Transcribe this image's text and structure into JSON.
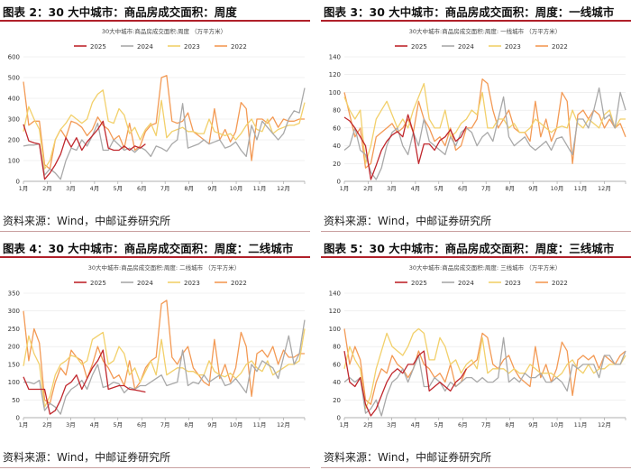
{
  "chart_data": [
    {
      "type": "line",
      "title": "图表 2：30 大中城市：商品房成交面积：周度",
      "subtitle": "30大中城市:商品房成交面积:周度 （万平方米）",
      "xlabel": "",
      "ylabel": "",
      "months": [
        "1月",
        "2月",
        "3月",
        "4月",
        "5月",
        "6月",
        "7月",
        "8月",
        "9月",
        "10月",
        "11月",
        "12月"
      ],
      "ylim": [
        0,
        600
      ],
      "yticks": [
        0,
        100,
        200,
        300,
        400,
        500,
        600
      ],
      "source": "资料来源：Wind，中邮证券研究所",
      "series": [
        {
          "name": "2025",
          "color": "#c0272d",
          "values": [
            275,
            195,
            185,
            180,
            10,
            40,
            80,
            130,
            210,
            165,
            210,
            150,
            190,
            220,
            250,
            290,
            160,
            150,
            150,
            170,
            150,
            170,
            160,
            180
          ]
        },
        {
          "name": "2024",
          "color": "#a9a9a9",
          "values": [
            170,
            175,
            175,
            180,
            30,
            60,
            40,
            10,
            100,
            160,
            150,
            200,
            170,
            220,
            280,
            150,
            150,
            200,
            175,
            150,
            160,
            140,
            165,
            150,
            120,
            170,
            160,
            145,
            180,
            200,
            375,
            160,
            170,
            180,
            200,
            180,
            190,
            200,
            160,
            170,
            190,
            150,
            120,
            270,
            200,
            290,
            260,
            230,
            200,
            230,
            300,
            340,
            330,
            450
          ]
        },
        {
          "name": "2023",
          "color": "#f2d06b",
          "values": [
            240,
            360,
            300,
            250,
            60,
            100,
            200,
            250,
            280,
            320,
            300,
            280,
            300,
            380,
            420,
            440,
            290,
            280,
            350,
            320,
            230,
            260,
            200,
            250,
            280,
            220,
            390,
            210,
            240,
            250,
            260,
            240,
            240,
            230,
            230,
            300,
            240,
            230,
            220,
            230,
            200,
            230,
            270,
            300,
            250,
            240,
            300,
            230,
            250,
            260,
            270,
            270,
            280,
            380
          ]
        },
        {
          "name": "2022",
          "color": "#f39a55",
          "values": [
            480,
            270,
            290,
            290,
            80,
            60,
            200,
            250,
            210,
            290,
            280,
            260,
            220,
            250,
            310,
            270,
            250,
            200,
            220,
            160,
            280,
            150,
            170,
            240,
            270,
            280,
            500,
            510,
            290,
            280,
            290,
            330,
            240,
            220,
            200,
            180,
            350,
            200,
            250,
            190,
            240,
            380,
            350,
            100,
            300,
            300,
            280,
            310,
            260,
            300,
            290,
            290,
            300,
            300
          ]
        }
      ]
    },
    {
      "type": "line",
      "title": "图表 3：30 大中城市：商品房成交面积：周度：一线城市",
      "subtitle": "30大中城市:商品房成交面积:周度: 一线城市 （万平方米）",
      "xlabel": "",
      "ylabel": "",
      "months": [
        "1月",
        "2月",
        "3月",
        "4月",
        "5月",
        "6月",
        "7月",
        "8月",
        "9月",
        "10月",
        "11月",
        "12月"
      ],
      "ylim": [
        0,
        140
      ],
      "yticks": [
        0,
        20,
        40,
        60,
        80,
        100,
        120,
        140
      ],
      "source": "资料来源：Wind，中邮证券研究所",
      "series": [
        {
          "name": "2025",
          "color": "#c0272d",
          "values": [
            72,
            68,
            60,
            50,
            40,
            2,
            18,
            35,
            45,
            52,
            56,
            50,
            75,
            55,
            20,
            42,
            42,
            35,
            46,
            50,
            58,
            45,
            50,
            62
          ]
        },
        {
          "name": "2024",
          "color": "#a9a9a9",
          "values": [
            35,
            40,
            60,
            35,
            30,
            10,
            2,
            15,
            40,
            55,
            60,
            40,
            30,
            55,
            40,
            70,
            45,
            40,
            35,
            30,
            50,
            40,
            55,
            60,
            55,
            40,
            50,
            55,
            45,
            70,
            95,
            50,
            40,
            45,
            50,
            40,
            35,
            40,
            45,
            35,
            48,
            50,
            40,
            30,
            70,
            70,
            60,
            80,
            105,
            70,
            75,
            60,
            100,
            80
          ]
        },
        {
          "name": "2023",
          "color": "#f2d06b",
          "values": [
            95,
            80,
            70,
            80,
            20,
            40,
            70,
            80,
            90,
            75,
            60,
            70,
            60,
            80,
            95,
            110,
            70,
            60,
            60,
            80,
            50,
            55,
            65,
            70,
            80,
            75,
            100,
            60,
            60,
            70,
            70,
            60,
            65,
            55,
            55,
            60,
            70,
            65,
            60,
            55,
            60,
            62,
            60,
            80,
            65,
            60,
            70,
            65,
            60,
            75,
            80,
            60,
            70,
            70
          ]
        },
        {
          "name": "2022",
          "color": "#f39a55",
          "values": [
            100,
            75,
            50,
            60,
            15,
            20,
            50,
            55,
            60,
            65,
            55,
            60,
            70,
            55,
            90,
            70,
            60,
            45,
            50,
            40,
            60,
            35,
            40,
            60,
            60,
            70,
            115,
            110,
            80,
            60,
            70,
            80,
            60,
            55,
            55,
            45,
            90,
            50,
            70,
            45,
            60,
            100,
            90,
            20,
            75,
            80,
            70,
            80,
            75,
            60,
            70,
            60,
            65,
            50
          ]
        }
      ]
    },
    {
      "type": "line",
      "title": "图表 4：30 大中城市：商品房成交面积：周度：二线城市",
      "subtitle": "30大中城市:商品房成交面积:周度: 二线城市 （万平方米）",
      "xlabel": "",
      "ylabel": "",
      "months": [
        "1月",
        "2月",
        "3月",
        "4月",
        "5月",
        "6月",
        "7月",
        "8月",
        "9月",
        "10月",
        "11月",
        "12月"
      ],
      "ylim": [
        0,
        350
      ],
      "yticks": [
        0,
        50,
        100,
        150,
        200,
        250,
        300,
        350
      ],
      "source": "资料来源：Wind，中邮证券研究所",
      "series": [
        {
          "name": "2025",
          "color": "#c0272d",
          "values": [
            115,
            80,
            80,
            80,
            80,
            10,
            20,
            50,
            90,
            100,
            120,
            80,
            110,
            140,
            160,
            190,
            80,
            85,
            90,
            90,
            80,
            78,
            75,
            72
          ]
        },
        {
          "name": "2024",
          "color": "#a9a9a9",
          "values": [
            100,
            100,
            95,
            105,
            20,
            40,
            30,
            10,
            60,
            80,
            90,
            105,
            80,
            120,
            150,
            85,
            90,
            100,
            95,
            70,
            85,
            80,
            90,
            90,
            100,
            110,
            120,
            90,
            95,
            100,
            190,
            90,
            100,
            95,
            120,
            100,
            110,
            120,
            90,
            95,
            110,
            90,
            70,
            150,
            130,
            160,
            150,
            140,
            110,
            170,
            230,
            150,
            180,
            275
          ]
        },
        {
          "name": "2023",
          "color": "#f2d06b",
          "values": [
            145,
            230,
            180,
            150,
            30,
            60,
            120,
            150,
            160,
            175,
            170,
            150,
            160,
            220,
            230,
            240,
            150,
            160,
            200,
            180,
            120,
            140,
            100,
            130,
            160,
            120,
            220,
            120,
            130,
            140,
            140,
            130,
            130,
            120,
            120,
            160,
            130,
            120,
            115,
            125,
            110,
            125,
            150,
            160,
            140,
            130,
            160,
            120,
            130,
            140,
            150,
            150,
            160,
            250
          ]
        },
        {
          "name": "2022",
          "color": "#f39a55",
          "values": [
            300,
            160,
            250,
            210,
            50,
            40,
            100,
            140,
            120,
            190,
            170,
            160,
            110,
            150,
            200,
            160,
            140,
            110,
            120,
            90,
            160,
            80,
            100,
            140,
            160,
            170,
            320,
            330,
            170,
            150,
            180,
            200,
            140,
            120,
            100,
            90,
            220,
            110,
            150,
            100,
            140,
            240,
            200,
            60,
            180,
            190,
            170,
            200,
            150,
            190,
            170,
            170,
            180,
            180
          ]
        }
      ]
    },
    {
      "type": "line",
      "title": "图表 5：30 大中城市：商品房成交面积：周度：三线城市",
      "subtitle": "30大中城市:商品房成交面积:周度: 三线城市 （万平方米）",
      "xlabel": "",
      "ylabel": "",
      "months": [
        "1月",
        "2月",
        "3月",
        "4月",
        "5月",
        "6月",
        "7月",
        "8月",
        "9月",
        "10月",
        "11月",
        "12月"
      ],
      "ylim": [
        0,
        140
      ],
      "yticks": [
        0,
        20,
        40,
        60,
        80,
        100,
        120,
        140
      ],
      "source": "资料来源：Wind，中邮证券研究所",
      "series": [
        {
          "name": "2025",
          "color": "#c0272d",
          "values": [
            75,
            40,
            35,
            45,
            15,
            2,
            10,
            25,
            40,
            50,
            55,
            50,
            60,
            60,
            70,
            75,
            30,
            35,
            40,
            35,
            30,
            40,
            45,
            55
          ]
        },
        {
          "name": "2024",
          "color": "#a9a9a9",
          "values": [
            40,
            45,
            40,
            45,
            5,
            10,
            20,
            2,
            25,
            40,
            45,
            55,
            40,
            55,
            70,
            35,
            35,
            45,
            40,
            30,
            40,
            35,
            40,
            45,
            45,
            40,
            45,
            40,
            40,
            45,
            90,
            40,
            45,
            40,
            50,
            45,
            45,
            50,
            40,
            40,
            45,
            40,
            30,
            60,
            55,
            60,
            60,
            60,
            45,
            70,
            70,
            60,
            60,
            75
          ]
        },
        {
          "name": "2023",
          "color": "#f2d06b",
          "values": [
            55,
            80,
            65,
            55,
            10,
            25,
            55,
            75,
            95,
            80,
            75,
            70,
            80,
            95,
            100,
            95,
            65,
            65,
            90,
            80,
            60,
            65,
            50,
            60,
            65,
            55,
            90,
            50,
            55,
            55,
            55,
            50,
            55,
            50,
            50,
            60,
            55,
            50,
            50,
            50,
            45,
            50,
            60,
            65,
            55,
            50,
            60,
            50,
            55,
            55,
            60,
            60,
            60,
            70
          ]
        },
        {
          "name": "2022",
          "color": "#f39a55",
          "values": [
            100,
            60,
            80,
            65,
            20,
            15,
            40,
            55,
            50,
            70,
            60,
            55,
            45,
            55,
            75,
            60,
            55,
            45,
            50,
            40,
            60,
            35,
            40,
            55,
            60,
            65,
            95,
            90,
            60,
            55,
            65,
            70,
            55,
            45,
            40,
            35,
            80,
            45,
            60,
            40,
            55,
            85,
            75,
            25,
            65,
            70,
            65,
            70,
            55,
            70,
            65,
            60,
            70,
            75
          ]
        }
      ]
    }
  ]
}
